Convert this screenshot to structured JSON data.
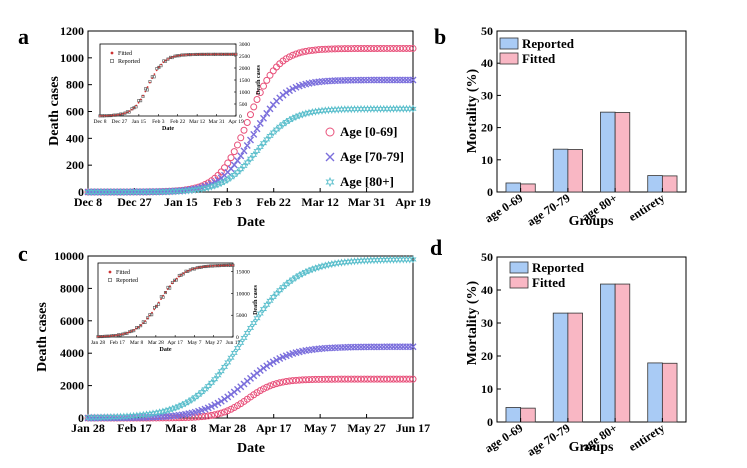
{
  "panels": {
    "a": {
      "label": "a",
      "xlabel": "Date",
      "ylabel": "Death cases",
      "xticks": [
        "Dec 8",
        "Dec 27",
        "Jan 15",
        "Feb 3",
        "Feb 22",
        "Mar 12",
        "Mar 31",
        "Apr 19"
      ],
      "yticks": [
        "0",
        "200",
        "400",
        "600",
        "800",
        "1000",
        "1200"
      ],
      "legend": [
        "Age [0-69]",
        "Age [70-79]",
        "Age [80+]"
      ],
      "inset": {
        "xlabel": "Date",
        "ylabel": "Death cases",
        "xticks": [
          "Dec 8",
          "Dec 27",
          "Jan 15",
          "Feb 3",
          "Feb 22",
          "Mar 12",
          "Mar 31",
          "Apr 19"
        ],
        "yticks": [
          "0",
          "500",
          "1000",
          "1500",
          "2000",
          "2500",
          "3000"
        ],
        "legend": [
          "Fitted",
          "Reported"
        ]
      }
    },
    "b": {
      "label": "b",
      "xlabel": "Groups",
      "ylabel": "Mortality (%)",
      "yticks": [
        "0",
        "10",
        "20",
        "30",
        "40",
        "50"
      ],
      "legend": [
        "Reported",
        "Fitted"
      ]
    },
    "c": {
      "label": "c",
      "xlabel": "Date",
      "ylabel": "Death cases",
      "xticks": [
        "Jan 28",
        "Feb 17",
        "Mar 8",
        "Mar 28",
        "Apr 17",
        "May 7",
        "May 27",
        "Jun 17"
      ],
      "yticks": [
        "0",
        "2000",
        "4000",
        "6000",
        "8000",
        "10000"
      ],
      "inset": {
        "xlabel": "Date",
        "ylabel": "Death cases",
        "xticks": [
          "Jan 28",
          "Feb 17",
          "Mar 8",
          "Mar 28",
          "Apr 17",
          "May 7",
          "May 27",
          "Jun 17"
        ],
        "yticks": [
          "0",
          "5000",
          "10000",
          "15000"
        ],
        "legend": [
          "Fitted",
          "Reported"
        ]
      }
    },
    "d": {
      "label": "d",
      "xlabel": "Groups",
      "ylabel": "Mortality (%)",
      "yticks": [
        "0",
        "10",
        "20",
        "30",
        "40",
        "50"
      ],
      "legend": [
        "Reported",
        "Fitted"
      ]
    }
  },
  "colors": {
    "age0_69": "#e8507a",
    "age70_79": "#7b6fdc",
    "age80": "#5bbfcc",
    "reported": "#a9cbf5",
    "fitted": "#f9b7c4",
    "inset_marker": "#cc3333"
  },
  "chart_data": [
    {
      "id": "a",
      "type": "scatter",
      "title": "",
      "xlabel": "Date",
      "ylabel": "Death cases",
      "x_tick_labels": [
        "Dec 8",
        "Dec 27",
        "Jan 15",
        "Feb 3",
        "Feb 22",
        "Mar 12",
        "Mar 31",
        "Apr 19"
      ],
      "xlim": [
        0,
        7
      ],
      "ylim": [
        0,
        1200
      ],
      "series": [
        {
          "name": "Age [0-69]",
          "marker": "circle",
          "plateau": 1070,
          "midpoint": 3.45,
          "scale": 0.32
        },
        {
          "name": "Age [70-79]",
          "marker": "x",
          "plateau": 835,
          "midpoint": 3.55,
          "scale": 0.35
        },
        {
          "name": "Age [80+]",
          "marker": "star",
          "plateau": 620,
          "midpoint": 3.65,
          "scale": 0.37
        }
      ],
      "inset": {
        "type": "scatter",
        "xlabel": "Date",
        "ylabel": "Death cases",
        "ylim": [
          0,
          3000
        ],
        "series": [
          {
            "name": "Fitted",
            "plateau": 2570,
            "midpoint": 2.5,
            "scale": 0.4
          },
          {
            "name": "Reported",
            "plateau": 2570,
            "midpoint": 2.5,
            "scale": 0.4
          }
        ]
      }
    },
    {
      "id": "b",
      "type": "bar",
      "xlabel": "Groups",
      "ylabel": "Mortality (%)",
      "categories": [
        "age 0-69",
        "age 70-79",
        "age 80+",
        "entirety"
      ],
      "ylim": [
        0,
        50
      ],
      "series": [
        {
          "name": "Reported",
          "values": [
            2.8,
            13.3,
            24.8,
            5.1
          ]
        },
        {
          "name": "Fitted",
          "values": [
            2.5,
            13.2,
            24.7,
            5.0
          ]
        }
      ]
    },
    {
      "id": "c",
      "type": "scatter",
      "xlabel": "Date",
      "ylabel": "Death cases",
      "x_tick_labels": [
        "Jan 28",
        "Feb 17",
        "Mar 8",
        "Mar 28",
        "Apr 17",
        "May 7",
        "May 27",
        "Jun 17"
      ],
      "xlim": [
        0,
        7
      ],
      "ylim": [
        0,
        10000
      ],
      "series": [
        {
          "name": "Age [0-69]",
          "marker": "circle",
          "plateau": 2400,
          "midpoint": 3.45,
          "scale": 0.3
        },
        {
          "name": "Age [70-79]",
          "marker": "x",
          "plateau": 4400,
          "midpoint": 3.4,
          "scale": 0.45
        },
        {
          "name": "Age [80+]",
          "marker": "star",
          "plateau": 9800,
          "midpoint": 3.35,
          "scale": 0.55
        }
      ],
      "inset": {
        "type": "scatter",
        "xlabel": "Date",
        "ylabel": "Death cases",
        "ylim": [
          0,
          17000
        ],
        "series": [
          {
            "name": "Fitted",
            "plateau": 16500,
            "midpoint": 3.2,
            "scale": 0.6
          },
          {
            "name": "Reported",
            "plateau": 16500,
            "midpoint": 3.2,
            "scale": 0.6
          }
        ]
      }
    },
    {
      "id": "d",
      "type": "bar",
      "xlabel": "Groups",
      "ylabel": "Mortality (%)",
      "categories": [
        "age 0-69",
        "age 70-79",
        "age 80+",
        "entirety"
      ],
      "ylim": [
        0,
        50
      ],
      "series": [
        {
          "name": "Reported",
          "values": [
            4.4,
            33.0,
            41.8,
            17.9
          ]
        },
        {
          "name": "Fitted",
          "values": [
            4.2,
            33.0,
            41.8,
            17.8
          ]
        }
      ]
    }
  ]
}
